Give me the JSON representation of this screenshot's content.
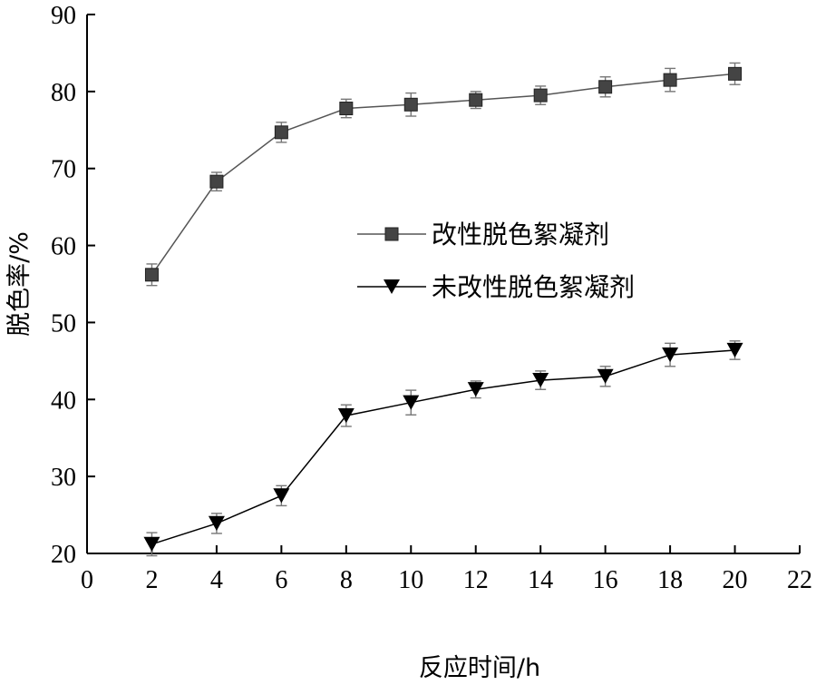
{
  "chart_data": {
    "type": "line",
    "title": "",
    "xlabel": "反应时间/h",
    "ylabel": "脱色率/%",
    "xlim": [
      0,
      22
    ],
    "ylim": [
      20,
      90
    ],
    "x_ticks": [
      0,
      2,
      4,
      6,
      8,
      10,
      12,
      14,
      16,
      18,
      20,
      22
    ],
    "y_ticks": [
      20,
      30,
      40,
      50,
      60,
      70,
      80,
      90
    ],
    "x": [
      2,
      4,
      6,
      8,
      10,
      12,
      14,
      16,
      18,
      20
    ],
    "grid": false,
    "legend_position": "center-right",
    "series": [
      {
        "name": "改性脱色絮凝剂",
        "marker": "square",
        "color": "#444444",
        "line_color": "#555555",
        "values": [
          56.2,
          68.3,
          74.7,
          77.8,
          78.3,
          78.9,
          79.5,
          80.6,
          81.5,
          82.3
        ],
        "errors": [
          1.4,
          1.2,
          1.3,
          1.2,
          1.5,
          1.1,
          1.2,
          1.3,
          1.5,
          1.4
        ]
      },
      {
        "name": "未改性脱色絮凝剂",
        "marker": "triangle-down",
        "color": "#000000",
        "line_color": "#000000",
        "values": [
          21.2,
          23.9,
          27.5,
          37.9,
          39.6,
          41.3,
          42.5,
          43.0,
          45.8,
          46.4
        ],
        "errors": [
          1.5,
          1.3,
          1.3,
          1.4,
          1.6,
          1.1,
          1.2,
          1.3,
          1.5,
          1.2
        ]
      }
    ]
  }
}
